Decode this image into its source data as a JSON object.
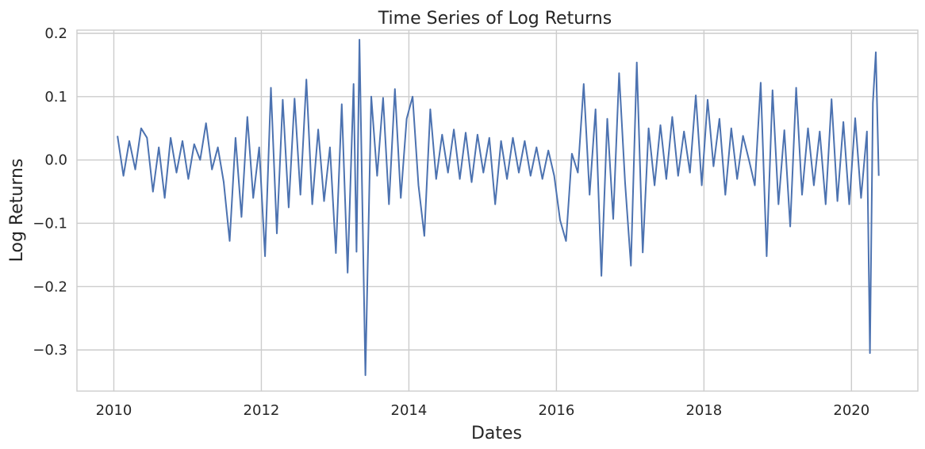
{
  "chart_data": {
    "type": "line",
    "title": "Time Series of Log Returns",
    "xlabel": "Dates",
    "ylabel": "Log Returns",
    "xlim": [
      2009.5,
      2020.9
    ],
    "ylim": [
      -0.365,
      0.205
    ],
    "xticks": [
      2010,
      2012,
      2014,
      2016,
      2018,
      2020
    ],
    "xtick_labels": [
      "2010",
      "2012",
      "2014",
      "2016",
      "2018",
      "2020"
    ],
    "yticks": [
      0.2,
      0.1,
      0.0,
      -0.1,
      -0.2,
      -0.3
    ],
    "ytick_labels": [
      "0.2",
      "0.1",
      "0.0",
      "−0.1",
      "−0.2",
      "−0.3"
    ],
    "grid": true,
    "line_color": "#4c72b0",
    "series": [
      {
        "x": [
          2010.05,
          2010.13,
          2010.21,
          2010.29,
          2010.37,
          2010.45,
          2010.53,
          2010.61,
          2010.69,
          2010.77,
          2010.85,
          2010.93,
          2011.01,
          2011.09,
          2011.17,
          2011.25,
          2011.33,
          2011.41,
          2011.49,
          2011.57,
          2011.65,
          2011.73,
          2011.81,
          2011.89,
          2011.97,
          2012.05,
          2012.13,
          2012.21,
          2012.29,
          2012.37,
          2012.45,
          2012.53,
          2012.61,
          2012.69,
          2012.77,
          2012.85,
          2012.93,
          2013.01,
          2013.09,
          2013.17,
          2013.25,
          2013.29,
          2013.33,
          2013.41,
          2013.49,
          2013.57,
          2013.65,
          2013.73,
          2013.81,
          2013.89,
          2013.97,
          2014.05,
          2014.13,
          2014.21,
          2014.29,
          2014.37,
          2014.45,
          2014.53,
          2014.61,
          2014.69,
          2014.77,
          2014.85,
          2014.93,
          2015.01,
          2015.09,
          2015.17,
          2015.25,
          2015.33,
          2015.41,
          2015.49,
          2015.57,
          2015.65,
          2015.73,
          2015.81,
          2015.89,
          2015.97,
          2016.05,
          2016.13,
          2016.21,
          2016.29,
          2016.37,
          2016.45,
          2016.53,
          2016.61,
          2016.69,
          2016.77,
          2016.85,
          2016.93,
          2017.01,
          2017.09,
          2017.17,
          2017.25,
          2017.33,
          2017.41,
          2017.49,
          2017.57,
          2017.65,
          2017.73,
          2017.81,
          2017.89,
          2017.97,
          2018.05,
          2018.13,
          2018.21,
          2018.29,
          2018.37,
          2018.45,
          2018.53,
          2018.61,
          2018.69,
          2018.77,
          2018.85,
          2018.93,
          2019.01,
          2019.09,
          2019.17,
          2019.25,
          2019.33,
          2019.41,
          2019.49,
          2019.57,
          2019.65,
          2019.73,
          2019.81,
          2019.89,
          2019.97,
          2020.05,
          2020.13,
          2020.21,
          2020.25,
          2020.29,
          2020.33,
          2020.37
        ],
        "y": [
          0.038,
          -0.025,
          0.03,
          -0.015,
          0.05,
          0.035,
          -0.05,
          0.02,
          -0.06,
          0.035,
          -0.02,
          0.03,
          -0.03,
          0.025,
          0.0,
          0.058,
          -0.015,
          0.02,
          -0.035,
          -0.128,
          0.035,
          -0.09,
          0.068,
          -0.06,
          0.02,
          -0.152,
          0.114,
          -0.116,
          0.095,
          -0.075,
          0.097,
          -0.055,
          0.127,
          -0.07,
          0.048,
          -0.065,
          0.02,
          -0.147,
          0.088,
          -0.178,
          0.12,
          -0.145,
          0.19,
          -0.34,
          0.1,
          -0.025,
          0.098,
          -0.07,
          0.112,
          -0.06,
          0.065,
          0.1,
          -0.04,
          -0.12,
          0.08,
          -0.03,
          0.04,
          -0.02,
          0.048,
          -0.03,
          0.043,
          -0.035,
          0.04,
          -0.02,
          0.035,
          -0.07,
          0.03,
          -0.03,
          0.035,
          -0.02,
          0.03,
          -0.025,
          0.02,
          -0.03,
          0.015,
          -0.025,
          -0.095,
          -0.128,
          0.01,
          -0.02,
          0.12,
          -0.055,
          0.08,
          -0.183,
          0.065,
          -0.093,
          0.137,
          -0.035,
          -0.167,
          0.154,
          -0.146,
          0.05,
          -0.04,
          0.055,
          -0.03,
          0.068,
          -0.025,
          0.045,
          -0.02,
          0.102,
          -0.04,
          0.095,
          -0.01,
          0.065,
          -0.055,
          0.05,
          -0.03,
          0.038,
          0.0,
          -0.04,
          0.122,
          -0.152,
          0.11,
          -0.07,
          0.047,
          -0.105,
          0.114,
          -0.055,
          0.05,
          -0.04,
          0.045,
          -0.07,
          0.096,
          -0.065,
          0.06,
          -0.07,
          0.066,
          -0.06,
          0.045,
          -0.305,
          0.09,
          0.17,
          -0.025
        ]
      }
    ]
  }
}
